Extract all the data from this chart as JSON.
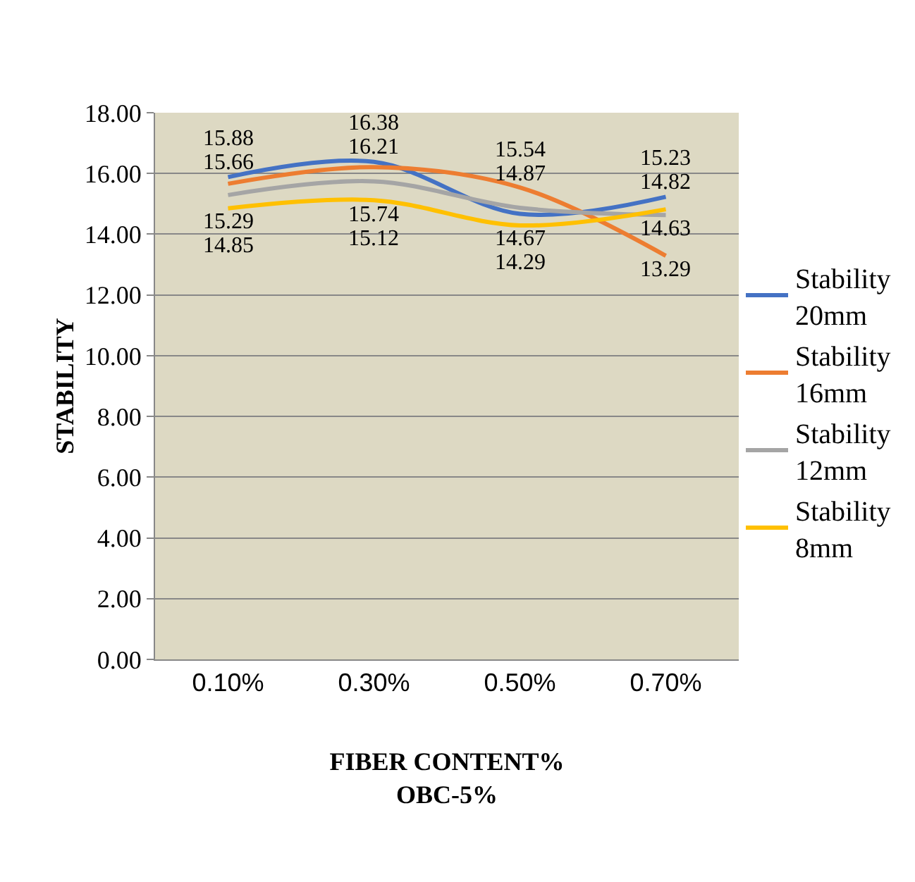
{
  "chart_data": {
    "type": "line",
    "xlabel": "FIBER CONTENT%\nOBC-5%",
    "ylabel": "STABILITY",
    "categories": [
      "0.10%",
      "0.30%",
      "0.50%",
      "0.70%"
    ],
    "series": [
      {
        "name": "Stability 20mm",
        "color": "#4472c4",
        "values": [
          15.88,
          16.38,
          14.67,
          15.23
        ]
      },
      {
        "name": "Stability 16mm",
        "color": "#ed7d31",
        "values": [
          15.66,
          16.21,
          15.54,
          13.29
        ]
      },
      {
        "name": "Stability 12mm",
        "color": "#a5a5a5",
        "values": [
          15.29,
          15.74,
          14.87,
          14.63
        ]
      },
      {
        "name": "Stability 8mm",
        "color": "#ffc000",
        "values": [
          14.85,
          15.12,
          14.29,
          14.82
        ]
      }
    ],
    "ylim": [
      0,
      18
    ],
    "yticks": [
      {
        "value": 0,
        "label": "0.00"
      },
      {
        "value": 2,
        "label": "2.00"
      },
      {
        "value": 4,
        "label": "4.00"
      },
      {
        "value": 6,
        "label": "6.00"
      },
      {
        "value": 8,
        "label": "8.00"
      },
      {
        "value": 10,
        "label": "10.00"
      },
      {
        "value": 12,
        "label": "12.00"
      },
      {
        "value": 14,
        "label": "14.00"
      },
      {
        "value": 16,
        "label": "16.00"
      },
      {
        "value": 18,
        "label": "18.00"
      }
    ],
    "grid": "y",
    "legend": "right",
    "data_labels": true,
    "marker": "none",
    "line_style": "solid"
  }
}
